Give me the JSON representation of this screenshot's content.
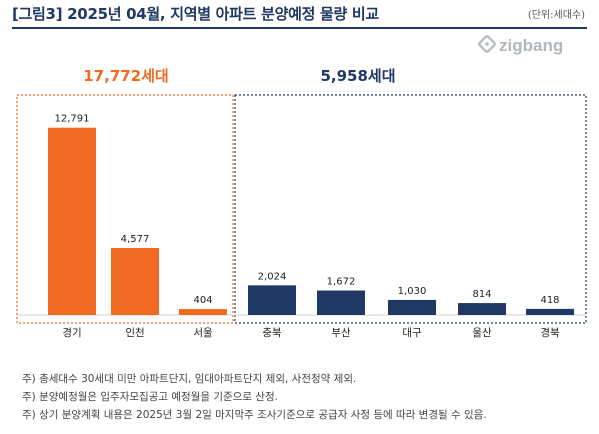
{
  "header": {
    "title": "[그림3] 2025년 04월, 지역별 아파트 분양예정 물량 비교",
    "unit": "(단위:세대수)"
  },
  "brand": {
    "logo_text": "zigbang",
    "logo_icon": "zigbang-logo-icon"
  },
  "colors": {
    "capital": "#f26a21",
    "province": "#203864",
    "title": "#1f3864",
    "group_border_capital": "#f26a21",
    "group_border_province": "#203864"
  },
  "chart_data": {
    "type": "bar",
    "title": "[그림3] 2025년 04월, 지역별 아파트 분양예정 물량 비교",
    "xlabel": "",
    "ylabel": "",
    "ylim": [
      0,
      14000
    ],
    "grid": false,
    "categories": [
      "경기",
      "인천",
      "서울",
      "충북",
      "부산",
      "대구",
      "울산",
      "경북"
    ],
    "values": [
      12791,
      4577,
      404,
      2024,
      1672,
      1030,
      814,
      418
    ],
    "data_labels": [
      "12,791",
      "4,577",
      "404",
      "2,024",
      "1,672",
      "1,030",
      "814",
      "418"
    ],
    "groups": [
      {
        "total_label": "17,772세대",
        "categories": [
          "경기",
          "인천",
          "서울"
        ],
        "color": "#f26a21"
      },
      {
        "total_label": "5,958세대",
        "categories": [
          "충북",
          "부산",
          "대구",
          "울산",
          "경북"
        ],
        "color": "#203864"
      }
    ]
  },
  "notes": [
    "주) 총세대수 30세대 미만 아파트단지, 임대아파트단지 제외, 사전청약 제외.",
    "주) 분양예정월은 입주자모집공고 예정월을 기준으로 산정.",
    "주) 상기 분양계획 내용은 2025년 3월 2일 마지막주 조사기준으로 공급자 사정 등에 따라 변경될 수 있음."
  ]
}
